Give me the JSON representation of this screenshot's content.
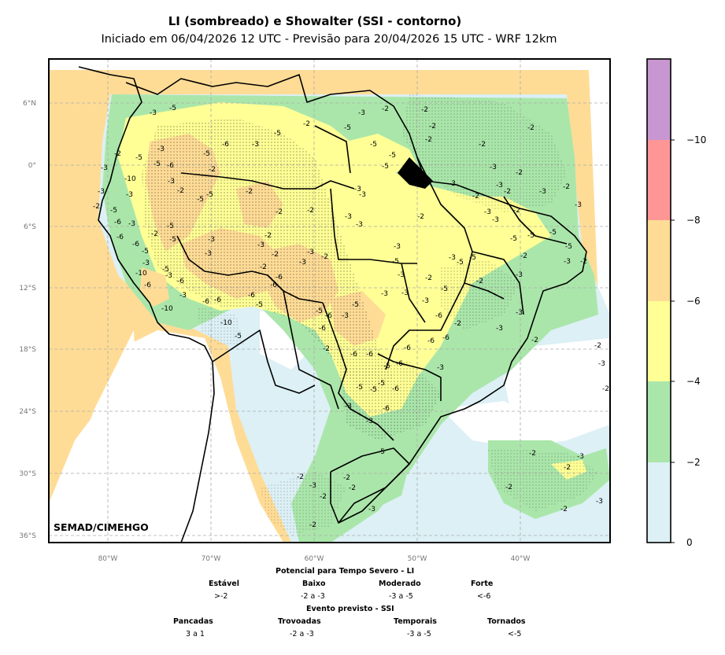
{
  "title": "LI (sombreado) e Showalter (SSI - contorno)",
  "subtitle": "Iniciado em 06/04/2026 12 UTC - Previsão para 20/04/2026 15 UTC - WRF 12km",
  "credit": "SEMAD/CIMEHGO",
  "axes": {
    "lat_labels": [
      "6°N",
      "0°",
      "6°S",
      "12°S",
      "18°S",
      "24°S",
      "30°S",
      "36°S"
    ],
    "lon_labels": [
      "80°W",
      "70°W",
      "60°W",
      "50°W",
      "40°W"
    ]
  },
  "colorbar": {
    "labels": [
      "−10",
      "−8",
      "−6",
      "−4",
      "−2",
      "0"
    ],
    "colors": [
      "#c896d0",
      "#ff9696",
      "#ffdc96",
      "#ffff96",
      "#aae6aa",
      "#dcf0f5"
    ]
  },
  "contour_labels": [
    "-2",
    "-3",
    "-5",
    "-6",
    "-10"
  ],
  "legend": {
    "li_title": "Potencial para Tempo Severo - LI",
    "li_categories": [
      {
        "name": "Estável",
        "range": ">-2"
      },
      {
        "name": "Baixo",
        "range": "-2 a -3"
      },
      {
        "name": "Moderado",
        "range": "-3 a -5"
      },
      {
        "name": "Forte",
        "range": "<-6"
      }
    ],
    "ssi_title": "Evento previsto - SSI",
    "ssi_categories": [
      {
        "name": "Pancadas",
        "range": "3 a 1"
      },
      {
        "name": "Trovoadas",
        "range": "-2 a -3"
      },
      {
        "name": "Temporais",
        "range": "-3 a -5"
      },
      {
        "name": "Tornados",
        "range": "<-5"
      }
    ]
  }
}
